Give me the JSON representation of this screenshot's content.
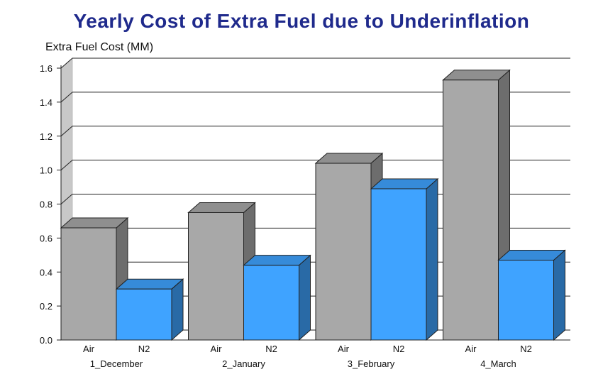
{
  "chart_data": {
    "type": "bar",
    "title": "Yearly Cost of Extra Fuel due to Underinflation",
    "ylabel": "Extra Fuel Cost (MM)",
    "xlabel": "",
    "groups": [
      "1_December",
      "2_January",
      "3_February",
      "4_March"
    ],
    "bar_labels": [
      "Air",
      "N2"
    ],
    "series": [
      {
        "name": "Air",
        "color": "#a8a8a8",
        "values": [
          0.66,
          0.75,
          1.04,
          1.53
        ]
      },
      {
        "name": "N2",
        "color": "#3fa3ff",
        "values": [
          0.3,
          0.44,
          0.89,
          0.47
        ]
      }
    ],
    "ylim": [
      0,
      1.6
    ],
    "yticks": [
      "0.0",
      "0.2",
      "0.4",
      "0.6",
      "0.8",
      "1.0",
      "1.2",
      "1.4",
      "1.6"
    ],
    "grid": true,
    "style": "3d"
  }
}
